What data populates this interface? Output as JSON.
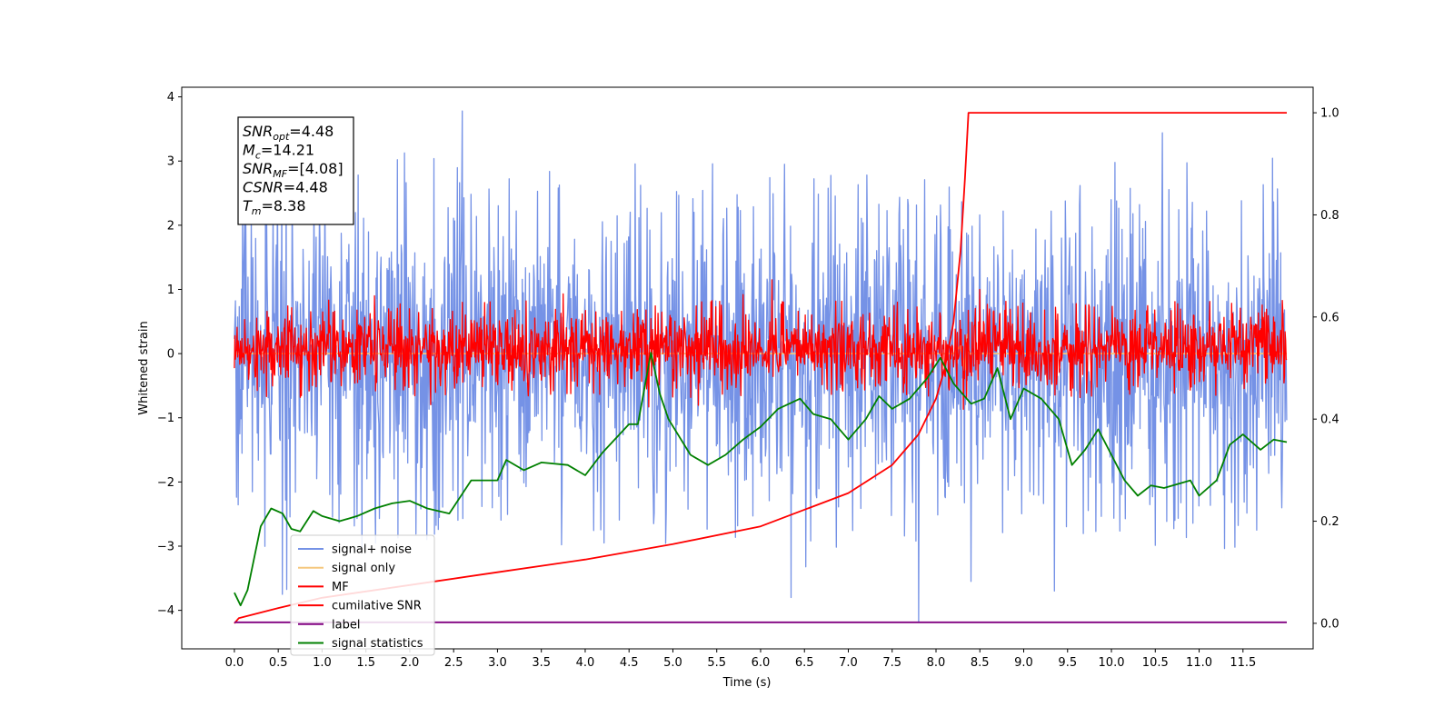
{
  "chart_data": {
    "type": "line",
    "title": "",
    "xlabel": "Time (s)",
    "ylabel": "Whitened strain",
    "y2label": "",
    "xlim": [
      -0.6,
      12.3
    ],
    "ylim": [
      -4.6,
      4.15
    ],
    "y2lim": [
      -0.05,
      1.05
    ],
    "x_ticks": [
      0.0,
      0.5,
      1.0,
      1.5,
      2.0,
      2.5,
      3.0,
      3.5,
      4.0,
      4.5,
      5.0,
      5.5,
      6.0,
      6.5,
      7.0,
      7.5,
      8.0,
      8.5,
      9.0,
      9.5,
      10.0,
      10.5,
      11.0,
      11.5
    ],
    "y_ticks": [
      -4,
      -3,
      -2,
      -1,
      0,
      1,
      2,
      3,
      4
    ],
    "y2_ticks": [
      0.0,
      0.2,
      0.4,
      0.6,
      0.8,
      1.0
    ],
    "grid": false,
    "legend_position": "lower-left",
    "annotation": {
      "lines": [
        {
          "label": "SNR",
          "subscript": "opt",
          "value": "=4.48"
        },
        {
          "label": "M",
          "subscript": "c",
          "value": "=14.21"
        },
        {
          "label": "SNR",
          "subscript": "MF",
          "value": "=[4.08]"
        },
        {
          "label": "CSNR",
          "subscript": "",
          "value": "=4.48"
        },
        {
          "label": "T",
          "subscript": "m",
          "value": "=8.38"
        }
      ]
    },
    "series": [
      {
        "name": "signal+ noise",
        "axis": "left",
        "color": "#7592e6",
        "style": "noise",
        "x_range": [
          0.0,
          12.0
        ],
        "band": [
          -2.1,
          2.1
        ],
        "peaks": [
          {
            "x": 2.6,
            "y": 3.78
          },
          {
            "x": 7.8,
            "y": -4.18
          },
          {
            "x": 6.35,
            "y": -3.8
          },
          {
            "x": 9.35,
            "y": -3.7
          },
          {
            "x": 0.55,
            "y": -3.75
          },
          {
            "x": 8.4,
            "y": -3.55
          }
        ]
      },
      {
        "name": "signal only",
        "axis": "left",
        "color": "#f5c77e",
        "style": "line",
        "points": [
          [
            0.0,
            0.0
          ],
          [
            8.2,
            0.0
          ],
          [
            8.28,
            0.12
          ],
          [
            8.33,
            -0.25
          ],
          [
            8.36,
            0.3
          ],
          [
            8.38,
            0.0
          ],
          [
            12.0,
            0.0
          ]
        ]
      },
      {
        "name": "MF",
        "axis": "left",
        "color": "#ff0000",
        "style": "noise",
        "x_range": [
          0.0,
          12.0
        ],
        "band": [
          -0.45,
          0.6
        ],
        "peaks": [
          {
            "x": 8.5,
            "y": 1.0
          },
          {
            "x": 5.8,
            "y": 0.92
          },
          {
            "x": 1.6,
            "y": 0.9
          },
          {
            "x": 8.35,
            "y": -0.7
          }
        ]
      },
      {
        "name": "cumilative SNR",
        "axis": "right",
        "color": "#ff0000",
        "style": "line",
        "points": [
          [
            0.0,
            0.0
          ],
          [
            0.05,
            0.01
          ],
          [
            0.5,
            0.03
          ],
          [
            1.0,
            0.05
          ],
          [
            2.0,
            0.075
          ],
          [
            3.0,
            0.1
          ],
          [
            4.0,
            0.125
          ],
          [
            5.0,
            0.155
          ],
          [
            6.0,
            0.19
          ],
          [
            7.0,
            0.255
          ],
          [
            7.5,
            0.31
          ],
          [
            7.8,
            0.37
          ],
          [
            8.0,
            0.44
          ],
          [
            8.1,
            0.5
          ],
          [
            8.2,
            0.59
          ],
          [
            8.28,
            0.73
          ],
          [
            8.33,
            0.87
          ],
          [
            8.37,
            1.0
          ],
          [
            12.0,
            1.0
          ]
        ]
      },
      {
        "name": "label",
        "axis": "right",
        "color": "#800080",
        "style": "line",
        "points": [
          [
            0.0,
            0.002
          ],
          [
            12.0,
            0.002
          ]
        ]
      },
      {
        "name": "signal statistics",
        "axis": "right",
        "color": "#008000",
        "style": "line",
        "points": [
          [
            0.0,
            0.06
          ],
          [
            0.07,
            0.035
          ],
          [
            0.15,
            0.065
          ],
          [
            0.3,
            0.19
          ],
          [
            0.42,
            0.225
          ],
          [
            0.55,
            0.215
          ],
          [
            0.65,
            0.185
          ],
          [
            0.75,
            0.18
          ],
          [
            0.9,
            0.22
          ],
          [
            1.0,
            0.21
          ],
          [
            1.2,
            0.2
          ],
          [
            1.4,
            0.21
          ],
          [
            1.6,
            0.225
          ],
          [
            1.8,
            0.235
          ],
          [
            2.0,
            0.24
          ],
          [
            2.2,
            0.225
          ],
          [
            2.45,
            0.215
          ],
          [
            2.7,
            0.28
          ],
          [
            3.0,
            0.28
          ],
          [
            3.1,
            0.32
          ],
          [
            3.3,
            0.3
          ],
          [
            3.5,
            0.315
          ],
          [
            3.8,
            0.31
          ],
          [
            4.0,
            0.29
          ],
          [
            4.2,
            0.335
          ],
          [
            4.5,
            0.39
          ],
          [
            4.6,
            0.39
          ],
          [
            4.75,
            0.53
          ],
          [
            4.85,
            0.45
          ],
          [
            4.95,
            0.4
          ],
          [
            5.2,
            0.33
          ],
          [
            5.4,
            0.31
          ],
          [
            5.6,
            0.33
          ],
          [
            5.8,
            0.36
          ],
          [
            6.0,
            0.385
          ],
          [
            6.2,
            0.42
          ],
          [
            6.45,
            0.44
          ],
          [
            6.6,
            0.41
          ],
          [
            6.8,
            0.4
          ],
          [
            7.0,
            0.36
          ],
          [
            7.2,
            0.4
          ],
          [
            7.35,
            0.445
          ],
          [
            7.5,
            0.42
          ],
          [
            7.7,
            0.44
          ],
          [
            7.9,
            0.48
          ],
          [
            8.05,
            0.52
          ],
          [
            8.2,
            0.47
          ],
          [
            8.4,
            0.43
          ],
          [
            8.55,
            0.44
          ],
          [
            8.7,
            0.5
          ],
          [
            8.85,
            0.4
          ],
          [
            9.0,
            0.46
          ],
          [
            9.2,
            0.44
          ],
          [
            9.4,
            0.4
          ],
          [
            9.55,
            0.31
          ],
          [
            9.7,
            0.34
          ],
          [
            9.85,
            0.38
          ],
          [
            10.0,
            0.33
          ],
          [
            10.15,
            0.28
          ],
          [
            10.3,
            0.25
          ],
          [
            10.45,
            0.27
          ],
          [
            10.6,
            0.265
          ],
          [
            10.9,
            0.28
          ],
          [
            11.0,
            0.25
          ],
          [
            11.2,
            0.28
          ],
          [
            11.35,
            0.35
          ],
          [
            11.5,
            0.37
          ],
          [
            11.7,
            0.34
          ],
          [
            11.85,
            0.36
          ],
          [
            12.0,
            0.355
          ]
        ]
      }
    ]
  }
}
